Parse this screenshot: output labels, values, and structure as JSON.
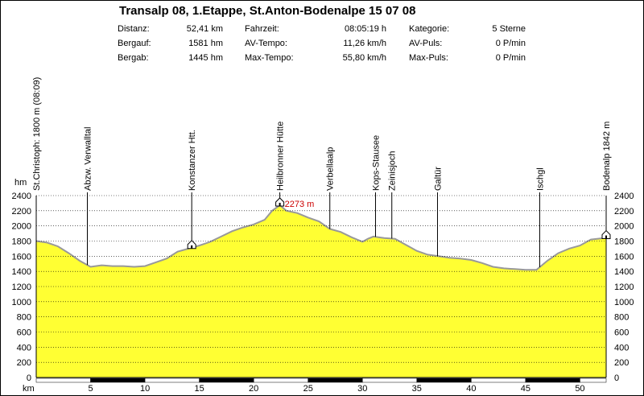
{
  "title": "Transalp 08, 1.Etappe, St.Anton-Bodenalpe 15 07 08",
  "stats": {
    "col1": [
      {
        "label": "Distanz:",
        "value": "52,41 km"
      },
      {
        "label": "Bergauf:",
        "value": "1581 hm"
      },
      {
        "label": "Bergab:",
        "value": "1445 hm"
      }
    ],
    "col2": [
      {
        "label": "Fahrzeit:",
        "value": "08:05:19 h"
      },
      {
        "label": "AV-Tempo:",
        "value": "11,26 km/h"
      },
      {
        "label": "Max-Tempo:",
        "value": "55,80 km/h"
      }
    ],
    "col3": [
      {
        "label": "Kategorie:",
        "value": "5 Sterne"
      },
      {
        "label": "AV-Puls:",
        "value": "0 P/min"
      },
      {
        "label": "Max-Puls:",
        "value": "0 P/min"
      }
    ]
  },
  "colors": {
    "fill": "#ffff33",
    "stroke": "#999999",
    "grid": "#000000",
    "max_label": "#cc0000"
  },
  "chart_data": {
    "type": "area",
    "ylabel": "hm",
    "xlabel": "km",
    "xlim": [
      0,
      52.41
    ],
    "ylim": [
      0,
      2400
    ],
    "xticks": [
      5,
      10,
      15,
      20,
      25,
      30,
      35,
      40,
      45,
      50
    ],
    "yticks": [
      0,
      200,
      400,
      600,
      800,
      1000,
      1200,
      1400,
      1600,
      1800,
      2000,
      2200,
      2400
    ],
    "grid": true,
    "max_label": "2273 m",
    "series": [
      {
        "x": [
          0,
          1,
          2,
          3,
          4,
          5,
          6,
          7,
          8,
          9,
          10,
          11,
          12,
          13,
          14,
          15,
          16,
          17,
          18,
          19,
          20,
          21,
          21.7,
          22.4,
          23,
          24,
          25,
          26,
          27,
          28,
          29,
          30,
          30.5,
          31,
          32,
          33,
          34,
          35,
          36,
          37,
          38,
          39,
          40,
          41,
          42,
          43,
          44,
          45,
          46,
          47,
          48,
          49,
          50,
          51,
          52.41
        ],
        "y": [
          1800,
          1780,
          1730,
          1640,
          1540,
          1460,
          1480,
          1470,
          1470,
          1460,
          1470,
          1520,
          1570,
          1660,
          1700,
          1740,
          1790,
          1860,
          1930,
          1980,
          2020,
          2080,
          2200,
          2273,
          2200,
          2170,
          2110,
          2060,
          1960,
          1920,
          1850,
          1790,
          1830,
          1860,
          1840,
          1830,
          1750,
          1670,
          1620,
          1600,
          1580,
          1570,
          1550,
          1510,
          1460,
          1440,
          1430,
          1420,
          1420,
          1540,
          1640,
          1700,
          1740,
          1820,
          1842
        ]
      }
    ],
    "waypoints": [
      {
        "km": 0,
        "label": "St.Christoph: 1800 m (08:09)"
      },
      {
        "km": 4.7,
        "label": "Abzw. Verwalltal"
      },
      {
        "km": 14.3,
        "label": "Konstanzer Htt."
      },
      {
        "km": 22.4,
        "label": "Heilbronner Hütte"
      },
      {
        "km": 27,
        "label": "Verbellaalp"
      },
      {
        "km": 31.2,
        "label": "Kops-Stausee"
      },
      {
        "km": 32.7,
        "label": "Zeinisjoch"
      },
      {
        "km": 36.9,
        "label": "Galtür"
      },
      {
        "km": 46.3,
        "label": "Ischgl"
      },
      {
        "km": 52.41,
        "label": "Bodenalp 1842 m"
      }
    ],
    "huts": [
      14.3,
      22.4,
      52.41
    ]
  }
}
